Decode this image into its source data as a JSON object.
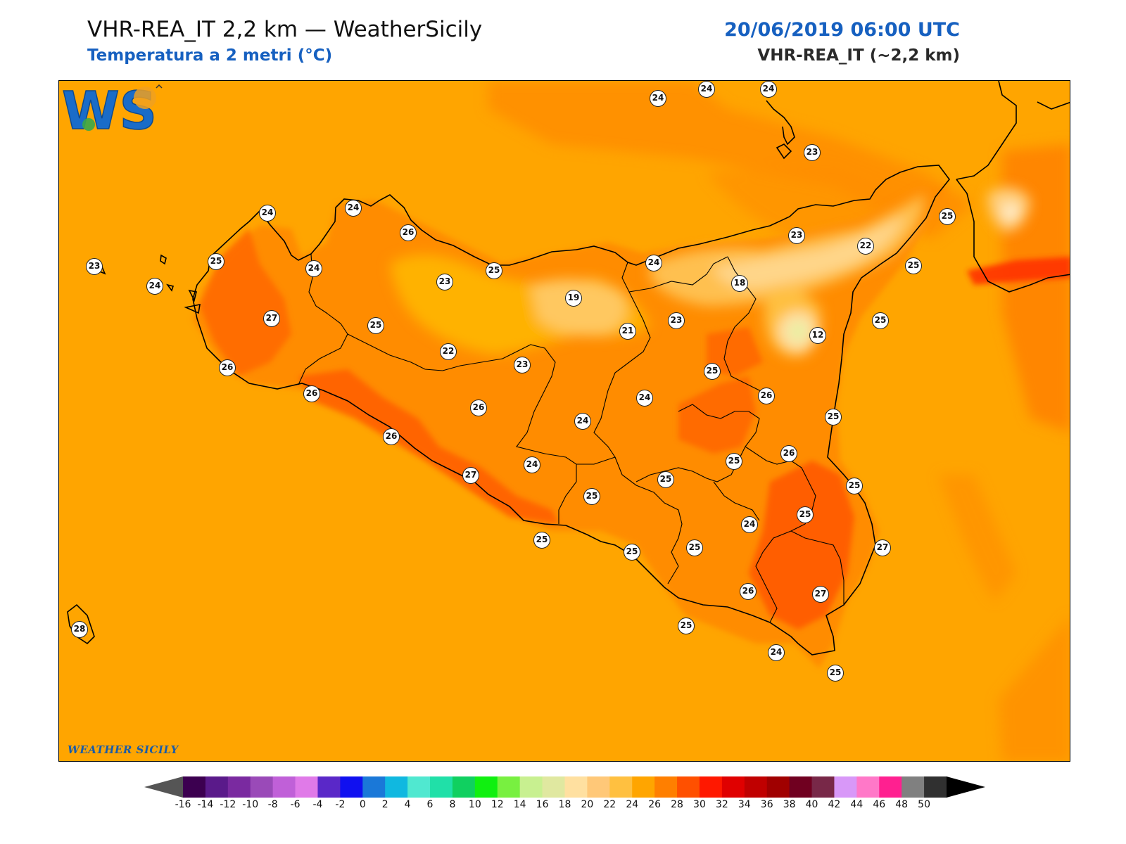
{
  "header": {
    "title": "VHR-REA_IT 2,2 km — WeatherSicily",
    "subtitle": "Temperatura a 2 metri (°C)",
    "datetime": "20/06/2019 06:00 UTC",
    "model": "VHR-REA_IT (~2,2 km)"
  },
  "map": {
    "variable": "2 m temperature",
    "base_color": "#ffa500",
    "stations": [
      {
        "value": "24",
        "pos": [
          851,
          25
        ]
      },
      {
        "value": "24",
        "pos": [
          920,
          12
        ]
      },
      {
        "value": "24",
        "pos": [
          1008,
          12
        ]
      },
      {
        "value": "23",
        "pos": [
          1070,
          102
        ]
      },
      {
        "value": "24",
        "pos": [
          296,
          188
        ]
      },
      {
        "value": "24",
        "pos": [
          418,
          181
        ]
      },
      {
        "value": "26",
        "pos": [
          496,
          216
        ]
      },
      {
        "value": "25",
        "pos": [
          223,
          257
        ]
      },
      {
        "value": "24",
        "pos": [
          362,
          267
        ]
      },
      {
        "value": "23",
        "pos": [
          50,
          264
        ]
      },
      {
        "value": "24",
        "pos": [
          136,
          292
        ]
      },
      {
        "value": "23",
        "pos": [
          548,
          286
        ]
      },
      {
        "value": "25",
        "pos": [
          618,
          270
        ]
      },
      {
        "value": "19",
        "pos": [
          731,
          309
        ]
      },
      {
        "value": "24",
        "pos": [
          845,
          259
        ]
      },
      {
        "value": "23",
        "pos": [
          1048,
          220
        ]
      },
      {
        "value": "22",
        "pos": [
          1146,
          235
        ]
      },
      {
        "value": "25",
        "pos": [
          1262,
          193
        ]
      },
      {
        "value": "25",
        "pos": [
          1214,
          263
        ]
      },
      {
        "value": "18",
        "pos": [
          967,
          288
        ]
      },
      {
        "value": "23",
        "pos": [
          877,
          341
        ]
      },
      {
        "value": "21",
        "pos": [
          808,
          356
        ]
      },
      {
        "value": "12",
        "pos": [
          1078,
          362
        ]
      },
      {
        "value": "25",
        "pos": [
          1167,
          341
        ]
      },
      {
        "value": "27",
        "pos": [
          302,
          338
        ]
      },
      {
        "value": "25",
        "pos": [
          450,
          348
        ]
      },
      {
        "value": "22",
        "pos": [
          553,
          385
        ]
      },
      {
        "value": "23",
        "pos": [
          658,
          404
        ]
      },
      {
        "value": "26",
        "pos": [
          239,
          408
        ]
      },
      {
        "value": "26",
        "pos": [
          359,
          445
        ]
      },
      {
        "value": "25",
        "pos": [
          928,
          413
        ]
      },
      {
        "value": "24",
        "pos": [
          832,
          451
        ]
      },
      {
        "value": "26",
        "pos": [
          1005,
          448
        ]
      },
      {
        "value": "26",
        "pos": [
          596,
          465
        ]
      },
      {
        "value": "24",
        "pos": [
          744,
          484
        ]
      },
      {
        "value": "25",
        "pos": [
          1100,
          478
        ]
      },
      {
        "value": "26",
        "pos": [
          472,
          506
        ]
      },
      {
        "value": "24",
        "pos": [
          672,
          546
        ]
      },
      {
        "value": "25",
        "pos": [
          959,
          541
        ]
      },
      {
        "value": "26",
        "pos": [
          1037,
          530
        ]
      },
      {
        "value": "27",
        "pos": [
          585,
          561
        ]
      },
      {
        "value": "25",
        "pos": [
          862,
          567
        ]
      },
      {
        "value": "25",
        "pos": [
          1130,
          576
        ]
      },
      {
        "value": "25",
        "pos": [
          757,
          591
        ]
      },
      {
        "value": "25",
        "pos": [
          1060,
          617
        ]
      },
      {
        "value": "24",
        "pos": [
          981,
          631
        ]
      },
      {
        "value": "25",
        "pos": [
          686,
          653
        ]
      },
      {
        "value": "25",
        "pos": [
          814,
          670
        ]
      },
      {
        "value": "25",
        "pos": [
          903,
          664
        ]
      },
      {
        "value": "27",
        "pos": [
          1170,
          664
        ]
      },
      {
        "value": "26",
        "pos": [
          979,
          726
        ]
      },
      {
        "value": "27",
        "pos": [
          1082,
          730
        ]
      },
      {
        "value": "28",
        "pos": [
          29,
          780
        ]
      },
      {
        "value": "25",
        "pos": [
          891,
          775
        ]
      },
      {
        "value": "24",
        "pos": [
          1019,
          813
        ]
      },
      {
        "value": "25",
        "pos": [
          1103,
          842
        ]
      }
    ]
  },
  "logo": {
    "text": "WS",
    "caption": "WEATHER SICILY"
  },
  "colorbar": {
    "ticks": [
      "-16",
      "-14",
      "-12",
      "-10",
      "-8",
      "-6",
      "-4",
      "-2",
      "0",
      "2",
      "4",
      "6",
      "8",
      "10",
      "12",
      "14",
      "16",
      "18",
      "20",
      "22",
      "24",
      "26",
      "28",
      "30",
      "32",
      "34",
      "36",
      "38",
      "40",
      "42",
      "44",
      "46",
      "48",
      "50"
    ],
    "colors": [
      "#3c0050",
      "#5a1a8a",
      "#7a2aa0",
      "#9a4ab8",
      "#c060d8",
      "#e07ae8",
      "#5a28c8",
      "#1010f0",
      "#1a78d8",
      "#10b8e0",
      "#50e8d0",
      "#20e0a8",
      "#10d060",
      "#10f010",
      "#78f040",
      "#c8f090",
      "#e0e8a0",
      "#ffe0a0",
      "#ffc878",
      "#ffc040",
      "#ffa500",
      "#ff7f00",
      "#ff5000",
      "#ff1800",
      "#e00000",
      "#c00000",
      "#a00000",
      "#700020",
      "#782848",
      "#d898f8",
      "#ff78c8",
      "#ff2090",
      "#808080",
      "#303030"
    ]
  }
}
